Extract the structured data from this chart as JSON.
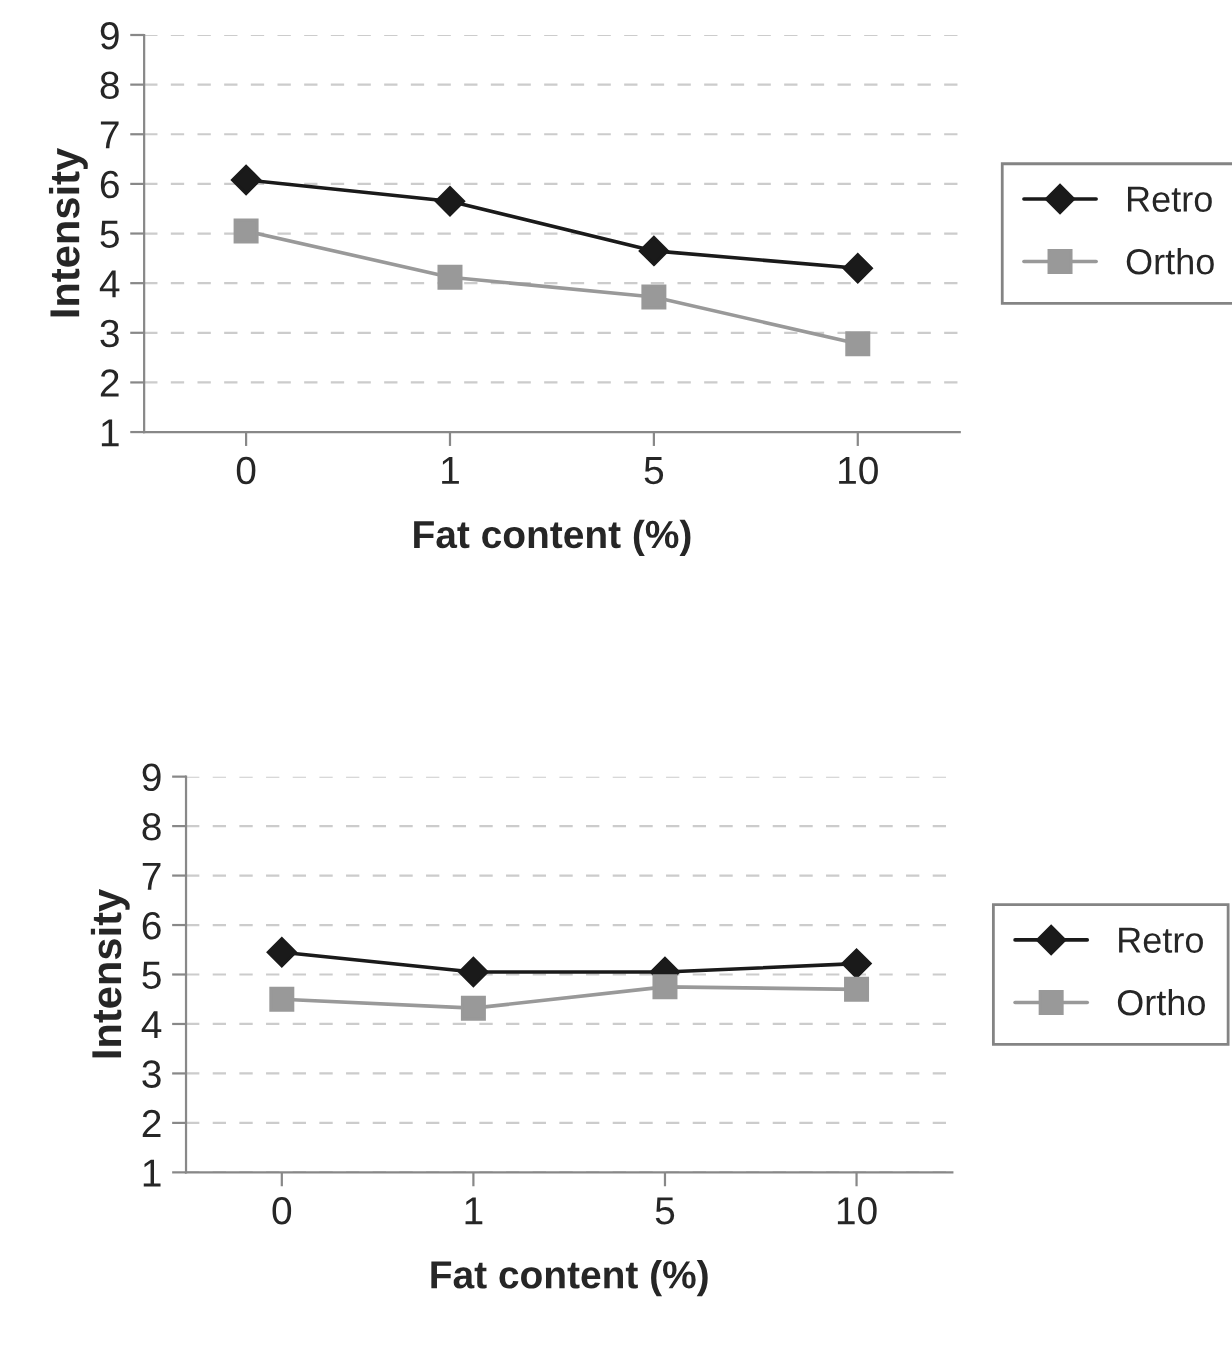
{
  "chart_data": [
    {
      "type": "line",
      "xlabel": "Fat content (%)",
      "ylabel": "Intensity",
      "categories": [
        "0",
        "1",
        "5",
        "10"
      ],
      "ylim": [
        1,
        9
      ],
      "yticks": [
        1,
        2,
        3,
        4,
        5,
        6,
        7,
        8,
        9
      ],
      "grid": "y",
      "legend": "right",
      "series": [
        {
          "name": "Retro",
          "color": "#1a1a1a",
          "marker": "diamond",
          "values": [
            6.08,
            5.65,
            4.65,
            4.3
          ]
        },
        {
          "name": "Ortho",
          "color": "#999999",
          "marker": "square",
          "values": [
            5.05,
            4.12,
            3.72,
            2.78
          ]
        }
      ]
    },
    {
      "type": "line",
      "xlabel": "Fat content (%)",
      "ylabel": "Intensity",
      "categories": [
        "0",
        "1",
        "5",
        "10"
      ],
      "ylim": [
        1,
        9
      ],
      "yticks": [
        1,
        2,
        3,
        4,
        5,
        6,
        7,
        8,
        9
      ],
      "grid": "y",
      "legend": "right",
      "series": [
        {
          "name": "Retro",
          "color": "#1a1a1a",
          "marker": "diamond",
          "values": [
            5.45,
            5.05,
            5.05,
            5.22
          ]
        },
        {
          "name": "Ortho",
          "color": "#999999",
          "marker": "square",
          "values": [
            4.5,
            4.32,
            4.75,
            4.7
          ]
        }
      ]
    }
  ]
}
